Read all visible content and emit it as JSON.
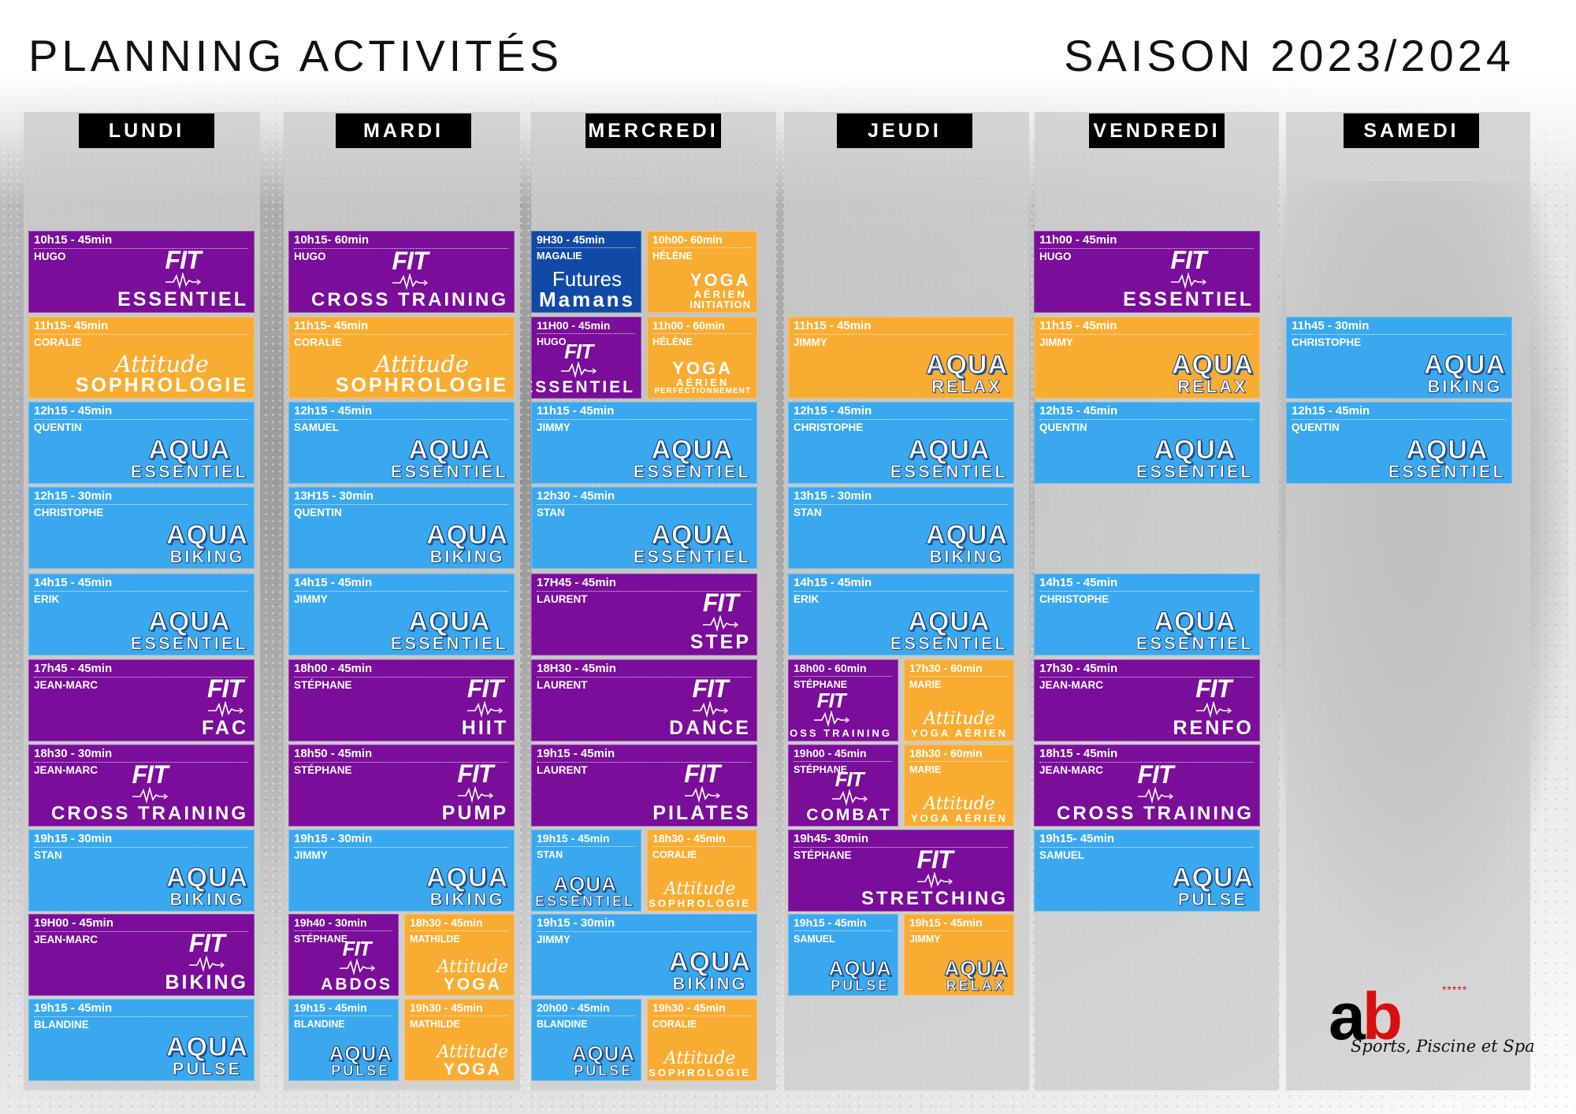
{
  "header": {
    "title": "PLANNING ACTIVITÉS",
    "season": "SAISON 2023/2024"
  },
  "colors": {
    "purple": "#7a0d99",
    "orange": "#f9ac32",
    "blue": "#3aa8ee",
    "navy": "#114aa6",
    "header_bg": "#000000",
    "brand_red": "#d70f0f"
  },
  "days": [
    {
      "name": "LUNDI",
      "sessions": [
        {
          "time": "10h15 - 45min",
          "coach": "HUGO",
          "brand": "FIT",
          "activity": "ESSENTIEL",
          "color": "purple"
        },
        {
          "time": "11h15- 45min",
          "coach": "CORALIE",
          "brand": "Attitude",
          "activity": "SOPHROLOGIE",
          "color": "orange"
        },
        {
          "time": "12h15 - 45min",
          "coach": "QUENTIN",
          "brand": "AQUA",
          "activity": "ESSENTIEL",
          "color": "blue"
        },
        {
          "time": "12h15 - 30min",
          "coach": "CHRISTOPHE",
          "brand": "AQUA",
          "activity": "BIKING",
          "color": "blue"
        },
        {
          "time": "14h15 - 45min",
          "coach": "ERIK",
          "brand": "AQUA",
          "activity": "ESSENTIEL",
          "color": "blue"
        },
        {
          "time": "17h45 - 45min",
          "coach": "JEAN-MARC",
          "brand": "FIT",
          "activity": "FAC",
          "color": "purple"
        },
        {
          "time": "18h30 - 30min",
          "coach": "JEAN-MARC",
          "brand": "FIT",
          "activity": "CROSS TRAINING",
          "color": "purple"
        },
        {
          "time": "19h15 - 30min",
          "coach": "STAN",
          "brand": "AQUA",
          "activity": "BIKING",
          "color": "blue"
        },
        {
          "time": "19H00 - 45min",
          "coach": "JEAN-MARC",
          "brand": "FIT",
          "activity": "BIKING",
          "color": "purple"
        },
        {
          "time": "19h15 - 45min",
          "coach": "BLANDINE",
          "brand": "AQUA",
          "activity": "PULSE",
          "color": "blue"
        }
      ]
    },
    {
      "name": "MARDI",
      "sessions": [
        {
          "time": "10h15- 60min",
          "coach": "HUGO",
          "brand": "FIT",
          "activity": "CROSS TRAINING",
          "color": "purple"
        },
        {
          "time": "11h15- 45min",
          "coach": "CORALIE",
          "brand": "Attitude",
          "activity": "SOPHROLOGIE",
          "color": "orange"
        },
        {
          "time": "12h15 - 45min",
          "coach": "SAMUEL",
          "brand": "AQUA",
          "activity": "ESSENTIEL",
          "color": "blue"
        },
        {
          "time": "13H15 - 30min",
          "coach": "QUENTIN",
          "brand": "AQUA",
          "activity": "BIKING",
          "color": "blue"
        },
        {
          "time": "14h15 - 45min",
          "coach": "JIMMY",
          "brand": "AQUA",
          "activity": "ESSENTIEL",
          "color": "blue"
        },
        {
          "time": "18h00 - 45min",
          "coach": "STÉPHANE",
          "brand": "FIT",
          "activity": "HIIT",
          "color": "purple"
        },
        {
          "time": "18h50 - 45min",
          "coach": "STÉPHANE",
          "brand": "FIT",
          "activity": "PUMP",
          "color": "purple"
        },
        {
          "time": "19h15 - 30min",
          "coach": "JIMMY",
          "brand": "AQUA",
          "activity": "BIKING",
          "color": "blue"
        },
        {
          "time": "19h40 - 30min",
          "coach": "STÉPHANE",
          "brand": "FIT",
          "activity": "ABDOS",
          "color": "purple"
        },
        {
          "time": "18h30 - 45min",
          "coach": "MATHILDE",
          "brand": "Attitude",
          "activity": "YOGA",
          "color": "orange"
        },
        {
          "time": "19h15 - 45min",
          "coach": "BLANDINE",
          "brand": "AQUA",
          "activity": "PULSE",
          "color": "blue"
        },
        {
          "time": "19h30 - 45min",
          "coach": "MATHILDE",
          "brand": "Attitude",
          "activity": "YOGA",
          "color": "orange"
        }
      ]
    },
    {
      "name": "MERCREDI",
      "sessions": [
        {
          "time": "9H30 - 45min",
          "coach": "MAGALIE",
          "brand": "Futures",
          "activity": "Mamans",
          "color": "navy"
        },
        {
          "time": "10h00- 60min",
          "coach": "HÉLÈNE",
          "brand": "YOGA",
          "activity": "AÉRIEN",
          "extra": "INITIATION",
          "color": "orange"
        },
        {
          "time": "11H00 - 45min",
          "coach": "HUGO",
          "brand": "FIT",
          "activity": "ESSENTIEL",
          "color": "purple"
        },
        {
          "time": "11h00 - 60min",
          "coach": "HÉLÈNE",
          "brand": "YOGA",
          "activity": "AÉRIEN",
          "extra": "PERFECTIONNEMENT",
          "color": "orange"
        },
        {
          "time": "11h15 - 45min",
          "coach": "JIMMY",
          "brand": "AQUA",
          "activity": "ESSENTIEL",
          "color": "blue"
        },
        {
          "time": "12h30 - 45min",
          "coach": "STAN",
          "brand": "AQUA",
          "activity": "ESSENTIEL",
          "color": "blue"
        },
        {
          "time": "17H45 - 45min",
          "coach": "LAURENT",
          "brand": "FIT",
          "activity": "STEP",
          "color": "purple"
        },
        {
          "time": "18H30 - 45min",
          "coach": "LAURENT",
          "brand": "FIT",
          "activity": "DANCE",
          "color": "purple"
        },
        {
          "time": "19h15 - 45min",
          "coach": "LAURENT",
          "brand": "FIT",
          "activity": "PILATES",
          "color": "purple"
        },
        {
          "time": "19h15 - 45min",
          "coach": "STAN",
          "brand": "AQUA",
          "activity": "ESSENTIEL",
          "color": "blue"
        },
        {
          "time": "18h30 - 45min",
          "coach": "CORALIE",
          "brand": "Attitude",
          "activity": "SOPHROLOGIE",
          "color": "orange"
        },
        {
          "time": "19h15 - 30min",
          "coach": "JIMMY",
          "brand": "AQUA",
          "activity": "BIKING",
          "color": "blue"
        },
        {
          "time": "20h00 - 45min",
          "coach": "BLANDINE",
          "brand": "AQUA",
          "activity": "PULSE",
          "color": "blue"
        },
        {
          "time": "19h30 - 45min",
          "coach": "CORALIE",
          "brand": "Attitude",
          "activity": "SOPHROLOGIE",
          "color": "orange"
        }
      ]
    },
    {
      "name": "JEUDI",
      "sessions": [
        {
          "time": "11h15 - 45min",
          "coach": "JIMMY",
          "brand": "AQUA",
          "activity": "RELAX",
          "color": "orange"
        },
        {
          "time": "12h15 - 45min",
          "coach": "CHRISTOPHE",
          "brand": "AQUA",
          "activity": "ESSENTIEL",
          "color": "blue"
        },
        {
          "time": "13h15 - 30min",
          "coach": "STAN",
          "brand": "AQUA",
          "activity": "BIKING",
          "color": "blue"
        },
        {
          "time": "14h15 - 45min",
          "coach": "ERIK",
          "brand": "AQUA",
          "activity": "ESSENTIEL",
          "color": "blue"
        },
        {
          "time": "18h00 - 60min",
          "coach": "STÉPHANE",
          "brand": "FIT",
          "activity": "CROSS TRAINING",
          "color": "purple"
        },
        {
          "time": "17h30 - 60min",
          "coach": "MARIE",
          "brand": "Attitude",
          "activity": "YOGA AÉRIEN",
          "color": "orange"
        },
        {
          "time": "19h00 - 45min",
          "coach": "STÉPHANE",
          "brand": "FIT",
          "activity": "COMBAT",
          "color": "purple"
        },
        {
          "time": "18h30 - 60min",
          "coach": "MARIE",
          "brand": "Attitude",
          "activity": "YOGA AÉRIEN",
          "color": "orange"
        },
        {
          "time": "19h45- 30min",
          "coach": "STÉPHANE",
          "brand": "FIT",
          "activity": "STRETCHING",
          "color": "purple"
        },
        {
          "time": "19h15 - 45min",
          "coach": "SAMUEL",
          "brand": "AQUA",
          "activity": "PULSE",
          "color": "blue"
        },
        {
          "time": "19h15 - 45min",
          "coach": "JIMMY",
          "brand": "AQUA",
          "activity": "RELAX",
          "color": "orange"
        }
      ]
    },
    {
      "name": "VENDREDI",
      "sessions": [
        {
          "time": "11h00 - 45min",
          "coach": "HUGO",
          "brand": "FIT",
          "activity": "ESSENTIEL",
          "color": "purple"
        },
        {
          "time": "11h15 - 45min",
          "coach": "JIMMY",
          "brand": "AQUA",
          "activity": "RELAX",
          "color": "orange"
        },
        {
          "time": "12h15 - 45min",
          "coach": "QUENTIN",
          "brand": "AQUA",
          "activity": "ESSENTIEL",
          "color": "blue"
        },
        {
          "time": "14h15 - 45min",
          "coach": "CHRISTOPHE",
          "brand": "AQUA",
          "activity": "ESSENTIEL",
          "color": "blue"
        },
        {
          "time": "17h30 - 45min",
          "coach": "JEAN-MARC",
          "brand": "FIT",
          "activity": "RENFO",
          "color": "purple"
        },
        {
          "time": "18h15 - 45min",
          "coach": "JEAN-MARC",
          "brand": "FIT",
          "activity": "CROSS TRAINING",
          "color": "purple"
        },
        {
          "time": "19h15- 45min",
          "coach": "SAMUEL",
          "brand": "AQUA",
          "activity": "PULSE",
          "color": "blue"
        }
      ]
    },
    {
      "name": "SAMEDI",
      "sessions": [
        {
          "time": "11h45 - 30min",
          "coach": "CHRISTOPHE",
          "brand": "AQUA",
          "activity": "BIKING",
          "color": "blue"
        },
        {
          "time": "12h15 - 45min",
          "coach": "QUENTIN",
          "brand": "AQUA",
          "activity": "ESSENTIEL",
          "color": "blue"
        }
      ]
    }
  ],
  "logo": {
    "letter_a": "a",
    "letter_b": "b",
    "stars": "*****",
    "tagline": "Sports, Piscine et Spa"
  }
}
